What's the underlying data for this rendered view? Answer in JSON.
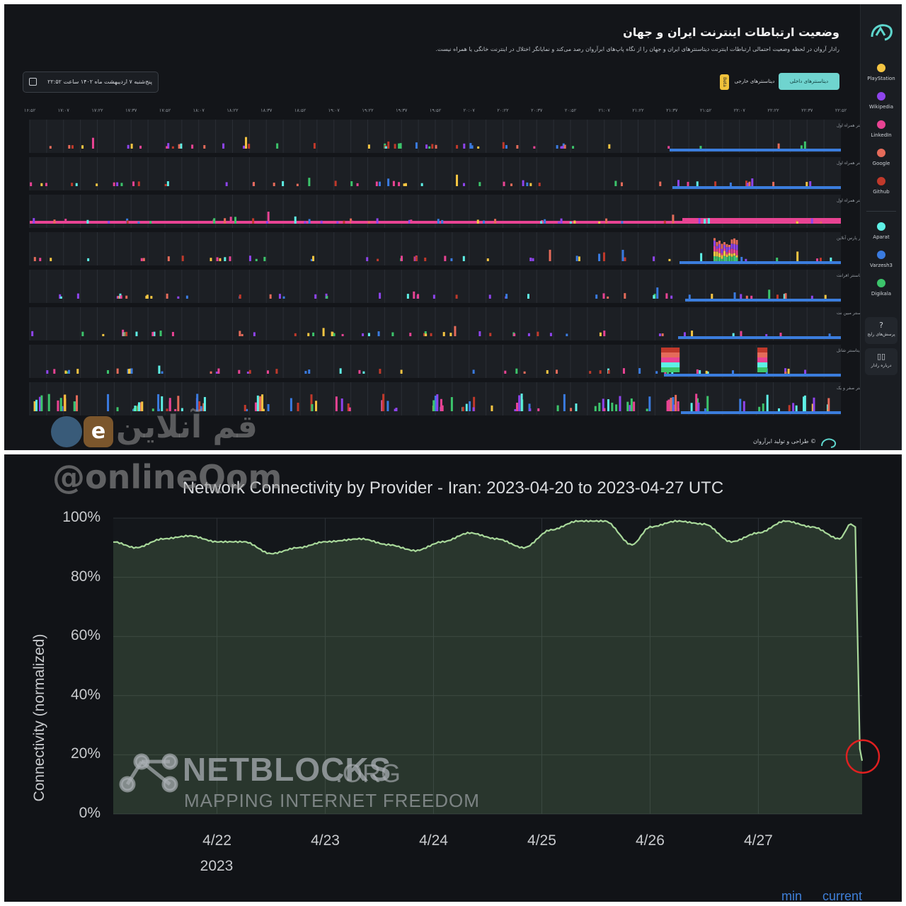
{
  "radar": {
    "title": "وضعیت ارتباطات اینترنت ایران و جهان",
    "subtitle": "رادار آروان در لحظه وضعیت احتمالی ارتباطات اینترنت دیتاسنترهای ایران و جهان را از نگاه پاپ‌های ابرآروان رصد می‌کند و نمایانگر اختلال در اینترنت خانگی یا همراه نیست.",
    "tab_domestic": "دیتاسنترهای داخلی",
    "tab_foreign": "دیتاسنترهای خارجی",
    "beta": "Beta",
    "date": "پنج‌شنبه ۷ اردیبهشت ماه ۱۴۰۲ ساعت ۲۲:۵۲",
    "credit": "© طراحی و تولید ابرآروان",
    "time_ticks": [
      "۲۲:۵۲",
      "۲۲:۳۷",
      "۲۲:۲۲",
      "۲۲:۰۷",
      "۲۱:۵۲",
      "۲۱:۳۷",
      "۲۱:۲۲",
      "۲۱:۰۷",
      "۲۰:۵۲",
      "۲۰:۳۷",
      "۲۰:۲۲",
      "۲۰:۰۷",
      "۱۹:۵۲",
      "۱۹:۳۷",
      "۱۹:۲۲",
      "۱۹:۰۷",
      "۱۸:۵۲",
      "۱۸:۳۷",
      "۱۸:۲۲",
      "۱۸:۰۷",
      "۱۷:۵۲",
      "۱۷:۳۷",
      "۱۷:۲۲",
      "۱۷:۰۷",
      "۱۶:۵۲"
    ],
    "rows": [
      {
        "label": "تهران - دیتاسنتر همراه اول"
      },
      {
        "label": "مشهد - دیتاسنتر همراه اول"
      },
      {
        "label": "شیراز - دیتاسنتر همراه اول"
      },
      {
        "label": "تهران - دیتاسنتر پارس آنلاین"
      },
      {
        "label": "تهران - دیتاسنتر افرانت"
      },
      {
        "label": "تهران - دیتاسنتر مبین نت"
      },
      {
        "label": "تهران - دیتاسنتر شاتل"
      },
      {
        "label": "تهران - دیتاسنتر صفر و یک"
      }
    ],
    "sidebar": [
      {
        "label": "PlayStation",
        "color": "#f5c542"
      },
      {
        "label": "Wikipedia",
        "color": "#8e44ec"
      },
      {
        "label": "LinkedIn",
        "color": "#e84393"
      },
      {
        "label": "Google",
        "color": "#e56b5a"
      },
      {
        "label": "Github",
        "color": "#c0392b"
      },
      {
        "label": "Aparat",
        "color": "#5ef0e6"
      },
      {
        "label": "Varzesh3",
        "color": "#3a7be0"
      },
      {
        "label": "Digikala",
        "color": "#3cc46b"
      }
    ],
    "faq_label": "پرسش‌های رایج",
    "about_label": "درباره رادار",
    "colors": {
      "domestic_bar": "#3b7ddd",
      "blocked": "#e84393"
    }
  },
  "watermark": {
    "fa": "قم آنلاین",
    "handle": "@onlineQom"
  },
  "chart_data": {
    "type": "area",
    "title": "Network Connectivity by Provider - Iran: 2023-04-20 to 2023-04-27 UTC",
    "ylabel": "Connectivity (normalized)",
    "xlabel": "",
    "ylim": [
      0,
      100
    ],
    "yticks": [
      "0%",
      "20%",
      "40%",
      "60%",
      "80%",
      "100%"
    ],
    "xticks": [
      "4/22",
      "4/23",
      "4/24",
      "4/25",
      "4/26",
      "4/27"
    ],
    "year_label": "2023",
    "xlim": [
      "2023-04-21T01:00",
      "2023-04-27T23:00"
    ],
    "series": [
      {
        "color": "#a8d89a",
        "x": [
          "2023-04-21T01:00",
          "2023-04-21T06:00",
          "2023-04-21T12:00",
          "2023-04-21T18:00",
          "2023-04-22T00:00",
          "2023-04-22T06:00",
          "2023-04-22T12:00",
          "2023-04-22T18:00",
          "2023-04-23T00:00",
          "2023-04-23T08:00",
          "2023-04-23T14:00",
          "2023-04-23T20:00",
          "2023-04-24T02:00",
          "2023-04-24T08:00",
          "2023-04-24T14:00",
          "2023-04-24T20:00",
          "2023-04-25T02:00",
          "2023-04-25T08:00",
          "2023-04-25T14:00",
          "2023-04-25T20:00",
          "2023-04-26T00:00",
          "2023-04-26T06:00",
          "2023-04-26T12:00",
          "2023-04-26T18:00",
          "2023-04-27T00:00",
          "2023-04-27T06:00",
          "2023-04-27T12:00",
          "2023-04-27T18:00",
          "2023-04-27T20:30",
          "2023-04-27T21:30",
          "2023-04-27T22:30",
          "2023-04-27T23:00"
        ],
        "values": [
          92,
          90,
          93,
          94,
          92,
          92,
          88,
          90,
          92,
          93,
          91,
          89,
          92,
          95,
          93,
          90,
          96,
          99,
          99,
          91,
          97,
          99,
          98,
          92,
          95,
          99,
          97,
          93,
          98,
          97,
          22,
          18
        ]
      }
    ]
  },
  "netblocks": {
    "logo": "NETBLOCKS",
    "logo_org": ".ORG",
    "tagline": "MAPPING INTERNET FREEDOM",
    "legend_min": "min",
    "legend_current": "current"
  }
}
